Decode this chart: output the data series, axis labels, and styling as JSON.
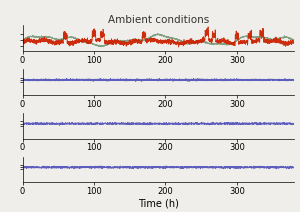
{
  "title": "Ambient conditions",
  "xlabel": "Time (h)",
  "x_max": 380,
  "x_ticks": [
    0,
    100,
    200,
    300
  ],
  "panel1_red_color": "#cc2200",
  "panel1_green_color": "#779977",
  "panel2_color": "#5555bb",
  "panel3_color": "#5555bb",
  "panel4_color": "#5555bb",
  "background_color": "#f0eeea",
  "title_fontsize": 7.5,
  "xlabel_fontsize": 7,
  "tick_fontsize": 6,
  "seed": 42,
  "n_points": 3000
}
